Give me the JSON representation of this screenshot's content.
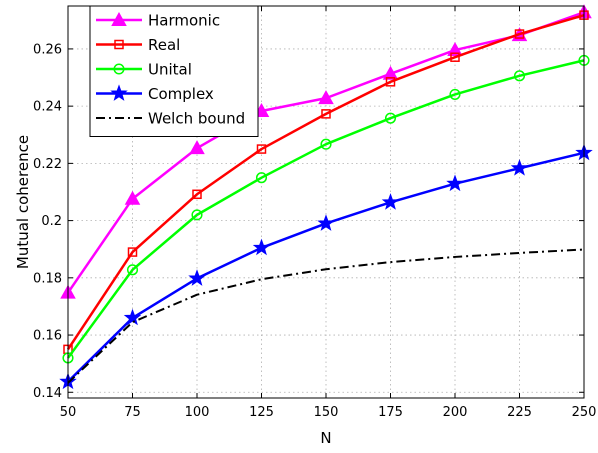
{
  "chart_data": {
    "type": "line",
    "xlabel": "N",
    "ylabel": "Mutual coherence",
    "x": [
      50,
      75,
      100,
      125,
      150,
      175,
      200,
      225,
      250
    ],
    "xlim": [
      50,
      250
    ],
    "ylim": [
      0.138,
      0.275
    ],
    "xticks": [
      "50",
      "75",
      "100",
      "125",
      "150",
      "175",
      "200",
      "225",
      "250"
    ],
    "yticks": [
      "0.14",
      "0.16",
      "0.18",
      "0.2",
      "0.22",
      "0.24",
      "0.26"
    ],
    "ytick_values": [
      0.14,
      0.16,
      0.18,
      0.2,
      0.22,
      0.24,
      0.26
    ],
    "grid": true,
    "legend_position": "top-left",
    "series": [
      {
        "name": "Harmonic",
        "color": "#ff00ff",
        "marker": "triangle",
        "dash": "solid",
        "values": [
          0.1748,
          0.2076,
          0.2253,
          0.2383,
          0.2428,
          0.2513,
          0.2596,
          0.2648,
          0.2728
        ]
      },
      {
        "name": "Real",
        "color": "#ff0000",
        "marker": "square",
        "dash": "solid",
        "values": [
          0.155,
          0.189,
          0.2092,
          0.225,
          0.2373,
          0.2485,
          0.2571,
          0.2652,
          0.2718
        ]
      },
      {
        "name": "Unital",
        "color": "#00ff00",
        "marker": "circle",
        "dash": "solid",
        "values": [
          0.152,
          0.1828,
          0.202,
          0.215,
          0.2267,
          0.2358,
          0.2441,
          0.2506,
          0.256
        ]
      },
      {
        "name": "Complex",
        "color": "#0000ff",
        "marker": "star",
        "dash": "solid",
        "values": [
          0.1437,
          0.166,
          0.1798,
          0.1905,
          0.199,
          0.2064,
          0.2129,
          0.2183,
          0.2237
        ]
      },
      {
        "name": "Welch bound",
        "color": "#000000",
        "marker": "none",
        "dash": "dashdot",
        "values": [
          0.1433,
          0.1645,
          0.1741,
          0.1795,
          0.183,
          0.1855,
          0.1873,
          0.1887,
          0.1899
        ]
      }
    ]
  }
}
